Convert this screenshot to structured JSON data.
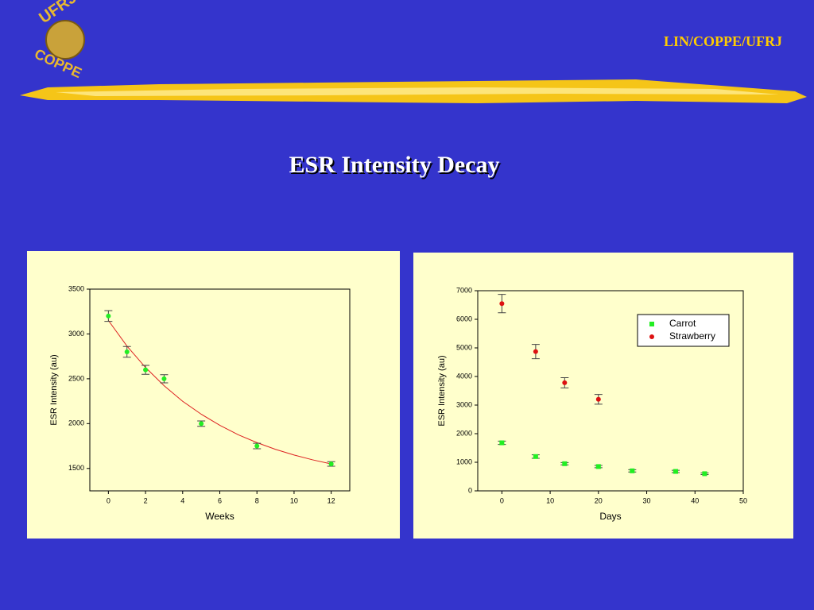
{
  "header": {
    "logo_top": "UFRJ",
    "logo_bottom": "COPPE",
    "org": "LIN/COPPE/UFRJ"
  },
  "title": "ESR  Intensity  Decay",
  "chart_data": [
    {
      "type": "scatter",
      "x_label": "Weeks",
      "y_label": "ESR Intensity (au)",
      "x": [
        0,
        1,
        2,
        3,
        5,
        8,
        12
      ],
      "values": [
        3200,
        2800,
        2600,
        2500,
        2000,
        1750,
        1550
      ],
      "errors": [
        60,
        60,
        50,
        45,
        30,
        30,
        25
      ],
      "color": "#22ee22",
      "marker": "circle",
      "fit": {
        "color": "#dd2222",
        "x": [
          0,
          1,
          2,
          3,
          4,
          5,
          6,
          7,
          8,
          9,
          10,
          11,
          12
        ],
        "values": [
          3150,
          2865,
          2626,
          2423,
          2249,
          2105,
          1981,
          1875,
          1788,
          1713,
          1650,
          1596,
          1550
        ]
      },
      "xlim": [
        -1,
        13
      ],
      "xticks": [
        0,
        2,
        4,
        6,
        8,
        10,
        12
      ],
      "ylim": [
        1250,
        3500
      ],
      "yticks": [
        1500,
        2000,
        2500,
        3000,
        3500
      ]
    },
    {
      "type": "scatter",
      "x_label": "Days",
      "y_label": "ESR Intensity (au)",
      "legend": "upper right",
      "series": [
        {
          "name": "Carrot",
          "color": "#22ee22",
          "marker": "square",
          "x": [
            0,
            7,
            13,
            20,
            27,
            36,
            42
          ],
          "values": [
            1680,
            1200,
            950,
            850,
            700,
            680,
            600
          ],
          "errors": [
            60,
            60,
            40,
            40,
            40,
            40,
            30
          ]
        },
        {
          "name": "Strawberry",
          "color": "#dd1111",
          "marker": "circle",
          "x": [
            0,
            7,
            13,
            20
          ],
          "values": [
            6550,
            4870,
            3780,
            3200
          ],
          "errors": [
            320,
            250,
            180,
            170
          ]
        }
      ],
      "xlim": [
        -5,
        50
      ],
      "xticks": [
        0,
        10,
        20,
        30,
        40,
        50
      ],
      "ylim": [
        0,
        7000
      ],
      "yticks": [
        0,
        1000,
        2000,
        3000,
        4000,
        5000,
        6000,
        7000
      ]
    }
  ]
}
